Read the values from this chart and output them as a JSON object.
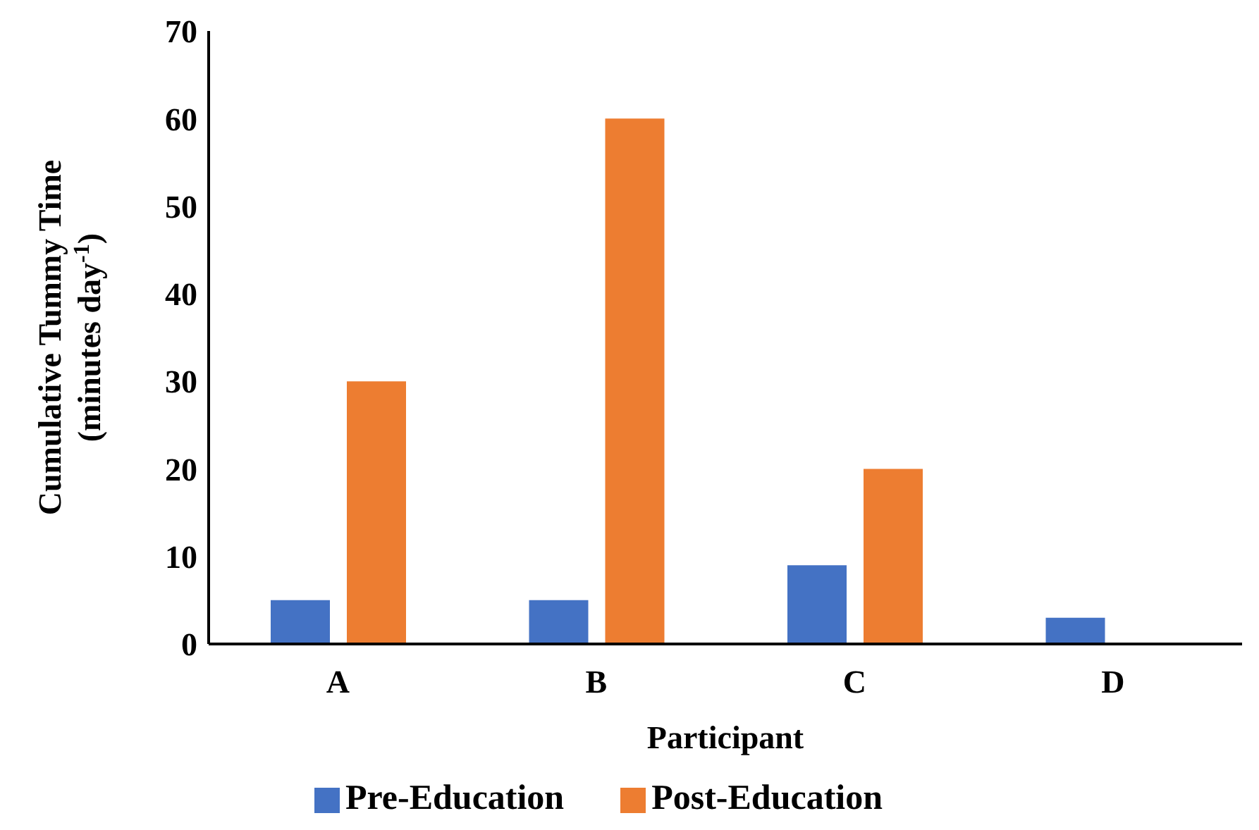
{
  "chart_data": {
    "type": "bar",
    "xlabel": "Participant",
    "ylabel": "Cumulative Tummy Time\n(minutes day$^{-1}$)",
    "categories": [
      "A",
      "B",
      "C",
      "D"
    ],
    "series": [
      {
        "name": "Pre-Education",
        "color": "#4472c4",
        "values": [
          5,
          5,
          9,
          3
        ]
      },
      {
        "name": "Post-Education",
        "color": "#ed7d31",
        "values": [
          30,
          60,
          20,
          0
        ]
      }
    ],
    "ylim": [
      0,
      70
    ],
    "yticks": [
      0,
      10,
      20,
      30,
      40,
      50,
      60,
      70
    ],
    "grid": false,
    "legend": "bottom"
  }
}
